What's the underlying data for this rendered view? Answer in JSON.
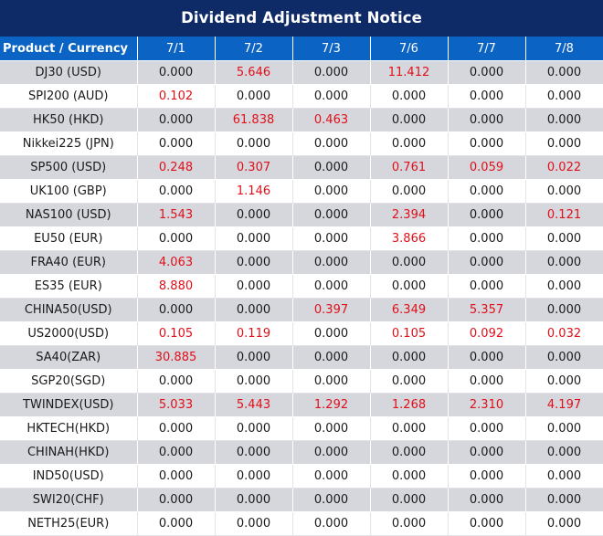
{
  "title": "Dividend Adjustment Notice",
  "header": {
    "product_label": "Product / Currency",
    "dates": [
      "7/1",
      "7/2",
      "7/3",
      "7/6",
      "7/7",
      "7/8"
    ]
  },
  "colors": {
    "title_bg": "#0e2a67",
    "header_bg": "#0b63c4",
    "shaded_row": "#d6d7dc",
    "positive_value": "#e0101a"
  },
  "rows": [
    {
      "product": "DJ30 (USD)",
      "values": [
        "0.000",
        "5.646",
        "0.000",
        "11.412",
        "0.000",
        "0.000"
      ]
    },
    {
      "product": "SPI200 (AUD)",
      "values": [
        "0.102",
        "0.000",
        "0.000",
        "0.000",
        "0.000",
        "0.000"
      ]
    },
    {
      "product": "HK50 (HKD)",
      "values": [
        "0.000",
        "61.838",
        "0.463",
        "0.000",
        "0.000",
        "0.000"
      ]
    },
    {
      "product": "Nikkei225 (JPN)",
      "values": [
        "0.000",
        "0.000",
        "0.000",
        "0.000",
        "0.000",
        "0.000"
      ]
    },
    {
      "product": "SP500 (USD)",
      "values": [
        "0.248",
        "0.307",
        "0.000",
        "0.761",
        "0.059",
        "0.022"
      ]
    },
    {
      "product": "UK100 (GBP)",
      "values": [
        "0.000",
        "1.146",
        "0.000",
        "0.000",
        "0.000",
        "0.000"
      ]
    },
    {
      "product": "NAS100 (USD)",
      "values": [
        "1.543",
        "0.000",
        "0.000",
        "2.394",
        "0.000",
        "0.121"
      ]
    },
    {
      "product": "EU50 (EUR)",
      "values": [
        "0.000",
        "0.000",
        "0.000",
        "3.866",
        "0.000",
        "0.000"
      ]
    },
    {
      "product": "FRA40 (EUR)",
      "values": [
        "4.063",
        "0.000",
        "0.000",
        "0.000",
        "0.000",
        "0.000"
      ]
    },
    {
      "product": "ES35 (EUR)",
      "values": [
        "8.880",
        "0.000",
        "0.000",
        "0.000",
        "0.000",
        "0.000"
      ]
    },
    {
      "product": "CHINA50(USD)",
      "values": [
        "0.000",
        "0.000",
        "0.397",
        "6.349",
        "5.357",
        "0.000"
      ]
    },
    {
      "product": "US2000(USD)",
      "values": [
        "0.105",
        "0.119",
        "0.000",
        "0.105",
        "0.092",
        "0.032"
      ]
    },
    {
      "product": "SA40(ZAR)",
      "values": [
        "30.885",
        "0.000",
        "0.000",
        "0.000",
        "0.000",
        "0.000"
      ]
    },
    {
      "product": "SGP20(SGD)",
      "values": [
        "0.000",
        "0.000",
        "0.000",
        "0.000",
        "0.000",
        "0.000"
      ]
    },
    {
      "product": "TWINDEX(USD)",
      "values": [
        "5.033",
        "5.443",
        "1.292",
        "1.268",
        "2.310",
        "4.197"
      ]
    },
    {
      "product": "HKTECH(HKD)",
      "values": [
        "0.000",
        "0.000",
        "0.000",
        "0.000",
        "0.000",
        "0.000"
      ]
    },
    {
      "product": "CHINAH(HKD)",
      "values": [
        "0.000",
        "0.000",
        "0.000",
        "0.000",
        "0.000",
        "0.000"
      ]
    },
    {
      "product": "IND50(USD)",
      "values": [
        "0.000",
        "0.000",
        "0.000",
        "0.000",
        "0.000",
        "0.000"
      ]
    },
    {
      "product": "SWI20(CHF)",
      "values": [
        "0.000",
        "0.000",
        "0.000",
        "0.000",
        "0.000",
        "0.000"
      ]
    },
    {
      "product": "NETH25(EUR)",
      "values": [
        "0.000",
        "0.000",
        "0.000",
        "0.000",
        "0.000",
        "0.000"
      ]
    }
  ]
}
